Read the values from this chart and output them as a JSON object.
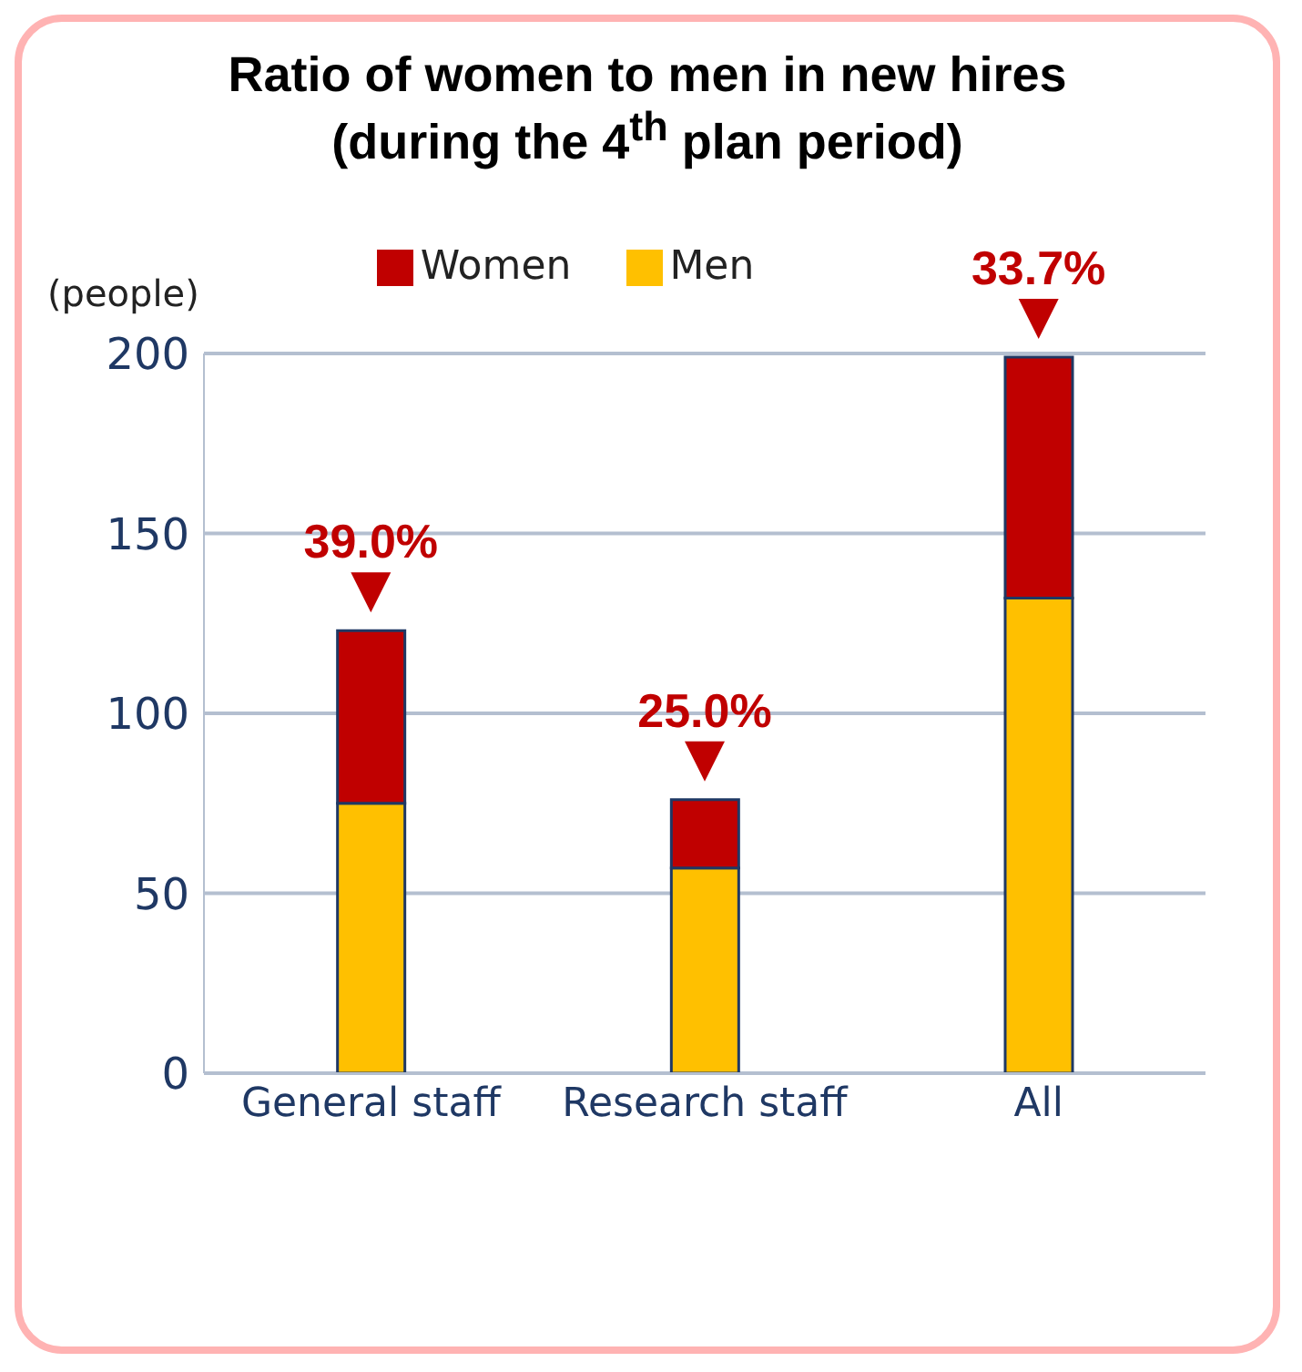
{
  "chart_data": {
    "type": "bar",
    "title": "Ratio of women to men in new hires (during the 4$^{th}$ plan period)",
    "ylabel": "(people)",
    "categories": [
      "General staff",
      "Research staff",
      "All"
    ],
    "series": [
      {
        "name": "Men",
        "color": "#ffc000",
        "values": [
          75,
          57,
          132
        ]
      },
      {
        "name": "Women",
        "color": "#c00000",
        "values": [
          48,
          19,
          67
        ]
      }
    ],
    "stacked": true,
    "ylim": [
      0,
      200
    ],
    "yticks": [
      0,
      50,
      100,
      150,
      200
    ],
    "grid": "y",
    "legend": "top",
    "annotations": [
      {
        "text": "39.0%",
        "x": "General staff",
        "y": 123
      },
      {
        "text": "25.0%",
        "x": "Research staff",
        "y": 76
      },
      {
        "text": "33.7%",
        "x": "All",
        "y": 199
      }
    ]
  }
}
